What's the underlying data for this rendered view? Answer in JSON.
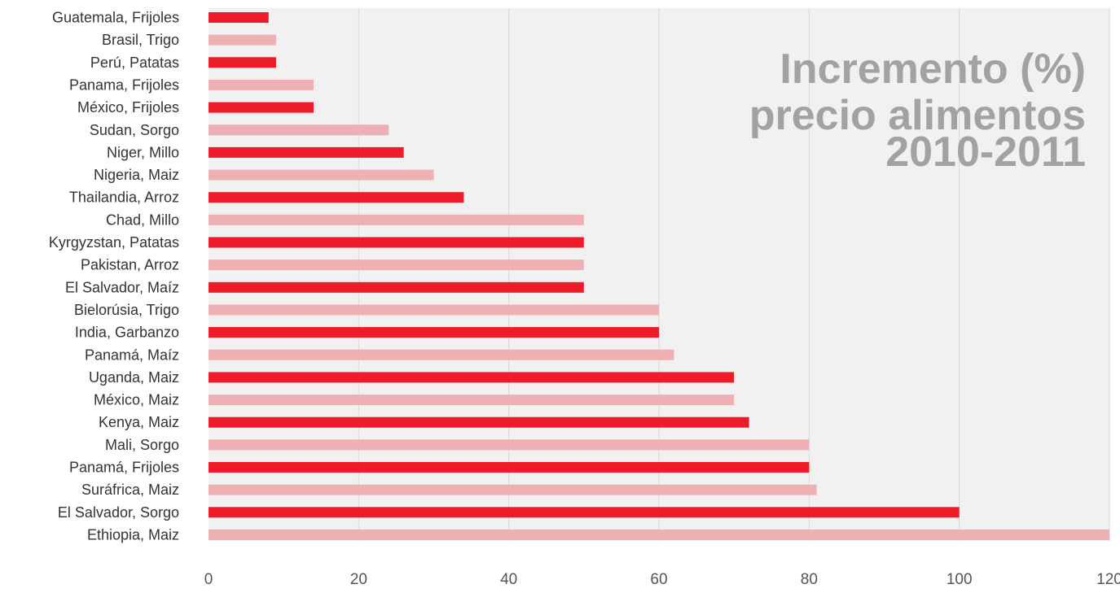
{
  "chart_data": {
    "type": "bar",
    "orientation": "horizontal",
    "title_lines": [
      "Incremento (%)",
      "precio alimentos",
      "2010-2011"
    ],
    "categories": [
      "Guatemala, Frijoles",
      "Brasil, Trigo",
      "Perú, Patatas",
      "Panama, Frijoles",
      "México, Frijoles",
      "Sudan, Sorgo",
      "Niger, Millo",
      "Nigeria, Maiz",
      "Thailandia, Arroz",
      "Chad, Millo",
      "Kyrgyzstan, Patatas",
      "Pakistan, Arroz",
      "El Salvador,  Maíz",
      "Bielorúsia, Trigo",
      "India, Garbanzo",
      "Panamá, Maíz",
      "Uganda, Maiz",
      "México, Maiz",
      "Kenya, Maiz",
      "Mali, Sorgo",
      "Panamá, Frijoles",
      "Suráfrica, Maiz",
      "El Salvador, Sorgo",
      "Ethiopia, Maiz"
    ],
    "values": [
      8,
      9,
      9,
      14,
      14,
      24,
      26,
      30,
      34,
      50,
      50,
      50,
      50,
      60,
      60,
      62,
      70,
      70,
      72,
      80,
      80,
      81,
      100,
      120
    ],
    "xlim": [
      0,
      120
    ],
    "xticks": [
      0,
      20,
      40,
      60,
      80,
      100,
      120
    ],
    "xgrid": true,
    "legend": "none",
    "colors": {
      "bar_dark": "#ee1c2a",
      "bar_light": "#efb0b4",
      "plot_background": "#f1f1f1",
      "title": "#a2a2a2",
      "gridline": "#d8d8d8"
    }
  }
}
